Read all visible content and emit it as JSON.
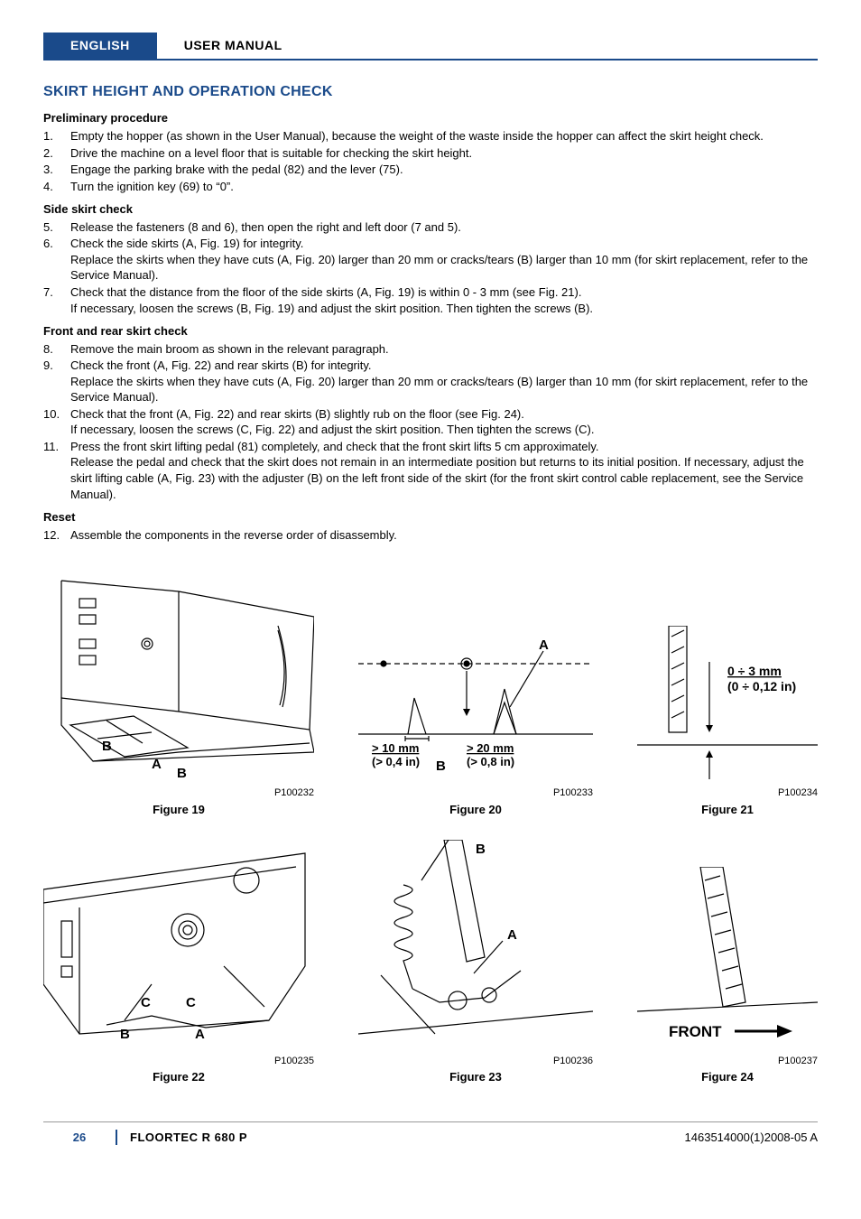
{
  "header": {
    "language": "ENGLISH",
    "section": "USER MANUAL"
  },
  "title": "SKIRT HEIGHT AND OPERATION CHECK",
  "sections": [
    {
      "heading": "Preliminary procedure",
      "items": [
        {
          "n": "1.",
          "t": "Empty the hopper (as shown in the User Manual), because the weight of the waste inside the hopper can affect the skirt height check."
        },
        {
          "n": "2.",
          "t": "Drive the machine on a level floor that is suitable for checking the skirt height."
        },
        {
          "n": "3.",
          "t": "Engage the parking brake with the pedal (82) and the lever (75)."
        },
        {
          "n": "4.",
          "t": "Turn the ignition key (69) to “0”."
        }
      ]
    },
    {
      "heading": "Side skirt check",
      "items": [
        {
          "n": "5.",
          "t": "Release the fasteners (8 and 6), then open the right and left door (7 and 5)."
        },
        {
          "n": "6.",
          "t": "Check the side skirts (A, Fig. 19) for integrity.\nReplace the skirts when they have cuts (A, Fig. 20) larger than 20 mm or cracks/tears (B) larger than 10 mm (for skirt replacement, refer to the Service Manual)."
        },
        {
          "n": "7.",
          "t": "Check that the distance from the floor of the side skirts (A, Fig. 19) is within 0 - 3 mm (see Fig. 21).\nIf necessary, loosen the screws (B, Fig. 19) and adjust the skirt position. Then tighten the screws (B)."
        }
      ]
    },
    {
      "heading": "Front and rear skirt check",
      "items": [
        {
          "n": "8.",
          "t": "Remove the main broom as shown in the relevant paragraph."
        },
        {
          "n": "9.",
          "t": "Check the front (A, Fig. 22) and rear skirts (B) for integrity.\nReplace the skirts when they have cuts (A, Fig. 20) larger than 20 mm or cracks/tears (B) larger than 10 mm (for skirt replacement, refer to the Service Manual)."
        },
        {
          "n": "10.",
          "t": "Check that the front (A, Fig. 22) and rear skirts (B) slightly rub on the floor (see Fig. 24).\nIf necessary, loosen the screws (C, Fig. 22) and adjust the skirt position. Then tighten the screws (C)."
        },
        {
          "n": "11.",
          "t": "Press the front skirt lifting pedal (81) completely, and check that the front skirt lifts 5 cm approximately.\nRelease the pedal and check that the skirt does not remain in an intermediate position but returns to its initial position. If necessary, adjust the skirt lifting cable (A, Fig. 23) with the adjuster (B) on the left front side of the skirt (for the front skirt control cable replacement, see the Service Manual)."
        }
      ]
    },
    {
      "heading": "Reset",
      "items": [
        {
          "n": "12.",
          "t": "Assemble the components in the reverse order of disassembly."
        }
      ]
    }
  ],
  "figures": {
    "row1": {
      "codes": [
        "P100232",
        "P100233",
        "P100234"
      ],
      "captions": [
        "Figure 19",
        "Figure 20",
        "Figure 21"
      ],
      "fig19": {
        "labels": [
          "B",
          "A",
          "B"
        ]
      },
      "fig20": {
        "A": "A",
        "B": "B",
        "l1a": "> 10 mm",
        "l1b": "(> 0,4 in)",
        "l2a": "> 20 mm",
        "l2b": "(> 0,8 in)"
      },
      "fig21": {
        "l1": "0 ÷ 3 mm",
        "l2": "(0 ÷ 0,12 in)"
      }
    },
    "row2": {
      "codes": [
        "P100235",
        "P100236",
        "P100237"
      ],
      "captions": [
        "Figure 22",
        "Figure 23",
        "Figure 24"
      ],
      "fig22": {
        "labels": [
          "C",
          "C",
          "B",
          "A"
        ]
      },
      "fig23": {
        "labels": [
          "B",
          "A"
        ]
      },
      "fig24": {
        "label": "FRONT"
      }
    }
  },
  "footer": {
    "page": "26",
    "model": "FLOORTEC R 680 P",
    "docnum": "1463514000(1)2008-05 A"
  },
  "colors": {
    "brand": "#1a4a8a",
    "text": "#000000",
    "rule": "#999999"
  }
}
